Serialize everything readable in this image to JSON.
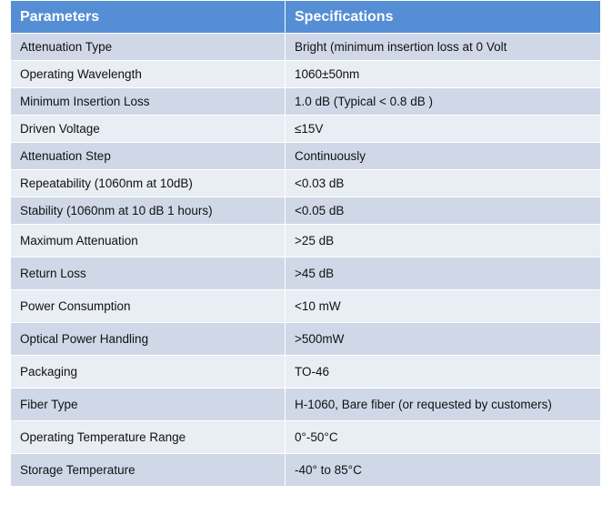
{
  "table": {
    "headers": [
      "Parameters",
      "Specifications"
    ],
    "rows": [
      [
        "Attenuation Type",
        "Bright (minimum insertion loss at 0 Volt"
      ],
      [
        "Operating Wavelength",
        "1060±50nm"
      ],
      [
        "Minimum Insertion Loss",
        "1.0 dB (Typical < 0.8 dB )"
      ],
      [
        "Driven Voltage",
        "≤15V"
      ],
      [
        "Attenuation Step",
        "Continuously"
      ],
      [
        "Repeatability (1060nm at 10dB)",
        "<0.03 dB"
      ],
      [
        "Stability (1060nm at 10 dB 1 hours)",
        "<0.05 dB"
      ],
      [
        "Maximum Attenuation",
        ">25 dB"
      ],
      [
        "Return Loss",
        ">45 dB"
      ],
      [
        "Power Consumption",
        "<10 mW"
      ],
      [
        "Optical Power Handling",
        ">500mW"
      ],
      [
        "Packaging",
        "TO-46"
      ],
      [
        "Fiber Type",
        "H-1060, Bare fiber (or requested by customers)"
      ],
      [
        "Operating Temperature Range",
        "0°-50°C"
      ],
      [
        "Storage Temperature",
        "-40° to 85°C"
      ]
    ]
  },
  "colors": {
    "header": "#558ed5",
    "row_dark": "#d0d8e8",
    "row_light": "#e9edf4"
  }
}
